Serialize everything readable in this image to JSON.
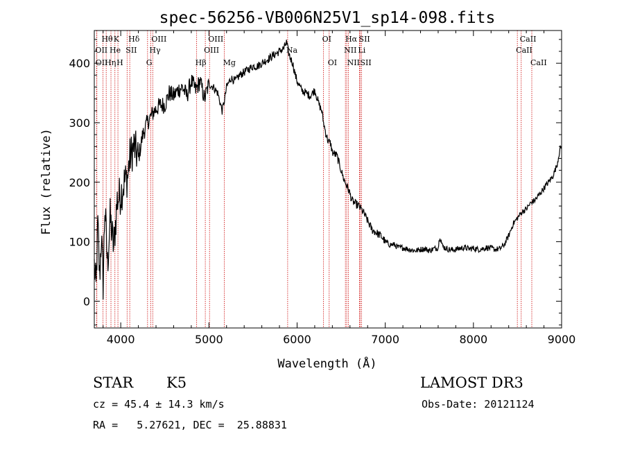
{
  "chart_data": {
    "type": "line",
    "title": "spec-56256-VB006N25V1_sp14-098.fits",
    "xlabel": "Wavelength (Å)",
    "ylabel": "Flux (relative)",
    "xlim": [
      3700,
      9000
    ],
    "ylim": [
      -45,
      455
    ],
    "x_ticks": [
      4000,
      5000,
      6000,
      7000,
      8000,
      9000
    ],
    "y_ticks": [
      0,
      100,
      200,
      300,
      400
    ],
    "series": [
      {
        "name": "spectrum",
        "x": [
          3700,
          3720,
          3740,
          3760,
          3780,
          3800,
          3820,
          3850,
          3880,
          3920,
          3960,
          4000,
          4040,
          4080,
          4100,
          4150,
          4200,
          4250,
          4300,
          4340,
          4380,
          4450,
          4500,
          4550,
          4600,
          4650,
          4700,
          4750,
          4800,
          4850,
          4900,
          4950,
          5000,
          5050,
          5100,
          5150,
          5180,
          5200,
          5250,
          5300,
          5350,
          5400,
          5450,
          5500,
          5550,
          5600,
          5650,
          5700,
          5750,
          5800,
          5850,
          5880,
          5900,
          5920,
          5950,
          5980,
          6000,
          6050,
          6100,
          6150,
          6200,
          6250,
          6280,
          6300,
          6330,
          6350,
          6380,
          6400,
          6450,
          6500,
          6530,
          6560,
          6590,
          6620,
          6650,
          6700,
          6750,
          6800,
          6850,
          6900,
          6950,
          7000,
          7050,
          7100,
          7150,
          7200,
          7250,
          7300,
          7350,
          7400,
          7450,
          7500,
          7550,
          7600,
          7620,
          7650,
          7700,
          7750,
          7800,
          7850,
          7900,
          7950,
          8000,
          8050,
          8100,
          8150,
          8200,
          8250,
          8300,
          8350,
          8400,
          8450,
          8500,
          8550,
          8600,
          8650,
          8700,
          8750,
          8800,
          8850,
          8900,
          8950,
          8980,
          9000
        ],
        "y": [
          60,
          20,
          130,
          40,
          110,
          30,
          160,
          60,
          140,
          90,
          170,
          180,
          200,
          210,
          240,
          260,
          240,
          280,
          300,
          310,
          320,
          330,
          330,
          350,
          345,
          355,
          360,
          345,
          370,
          355,
          370,
          340,
          365,
          360,
          350,
          320,
          340,
          360,
          375,
          370,
          380,
          385,
          390,
          395,
          395,
          400,
          405,
          410,
          415,
          420,
          425,
          435,
          420,
          410,
          400,
          380,
          370,
          355,
          350,
          345,
          355,
          330,
          320,
          300,
          280,
          270,
          265,
          250,
          245,
          220,
          205,
          195,
          185,
          170,
          165,
          160,
          150,
          135,
          120,
          115,
          110,
          100,
          95,
          95,
          90,
          90,
          88,
          86,
          85,
          87,
          88,
          85,
          88,
          90,
          110,
          92,
          88,
          86,
          87,
          89,
          90,
          88,
          89,
          87,
          88,
          90,
          89,
          87,
          88,
          95,
          110,
          130,
          140,
          150,
          155,
          165,
          170,
          180,
          190,
          200,
          210,
          230,
          255,
          260
        ]
      }
    ],
    "emission_lines": [
      {
        "label": "Hθ",
        "wave": 3798,
        "row": 1
      },
      {
        "label": "OII",
        "wave": 3727,
        "row": 2
      },
      {
        "label": "OII",
        "wave": 3729,
        "row": 3
      },
      {
        "label": "K",
        "wave": 3934,
        "row": 1
      },
      {
        "label": "He",
        "wave": 3889,
        "row": 2
      },
      {
        "label": "Hη",
        "wave": 3835,
        "row": 3
      },
      {
        "label": "Hδ",
        "wave": 4102,
        "row": 1
      },
      {
        "label": "SII",
        "wave": 4072,
        "row": 2
      },
      {
        "label": "H",
        "wave": 3968,
        "row": 3
      },
      {
        "label": "OIII",
        "wave": 4363,
        "row": 1
      },
      {
        "label": "Hγ",
        "wave": 4340,
        "row": 2
      },
      {
        "label": "G",
        "wave": 4304,
        "row": 3
      },
      {
        "label": "OIII",
        "wave": 5007,
        "row": 1
      },
      {
        "label": "OIII",
        "wave": 4959,
        "row": 2
      },
      {
        "label": "Hβ",
        "wave": 4861,
        "row": 3
      },
      {
        "label": "Mg",
        "wave": 5175,
        "row": 3
      },
      {
        "label": "Na",
        "wave": 5893,
        "row": 2
      },
      {
        "label": "OI",
        "wave": 6300,
        "row": 1
      },
      {
        "label": "OI",
        "wave": 6364,
        "row": 3
      },
      {
        "label": "Hα",
        "wave": 6563,
        "row": 1
      },
      {
        "label": "NII",
        "wave": 6548,
        "row": 2
      },
      {
        "label": "NII",
        "wave": 6583,
        "row": 3
      },
      {
        "label": "SII",
        "wave": 6716,
        "row": 1
      },
      {
        "label": "Li",
        "wave": 6707,
        "row": 2
      },
      {
        "label": "SII",
        "wave": 6731,
        "row": 3
      },
      {
        "label": "CaII",
        "wave": 8542,
        "row": 1
      },
      {
        "label": "CaII",
        "wave": 8498,
        "row": 2
      },
      {
        "label": "CaII",
        "wave": 8662,
        "row": 3
      }
    ]
  },
  "info": {
    "class": "STAR",
    "subclass": "K5",
    "survey": "LAMOST DR3",
    "cz": "cz = 45.4 ± 14.3 km/s",
    "obs_date": "Obs-Date: 20121124",
    "radec": "RA =   5.27621, DEC =  25.88831"
  },
  "colors": {
    "line": "#000000",
    "marker": "#cc0000"
  }
}
